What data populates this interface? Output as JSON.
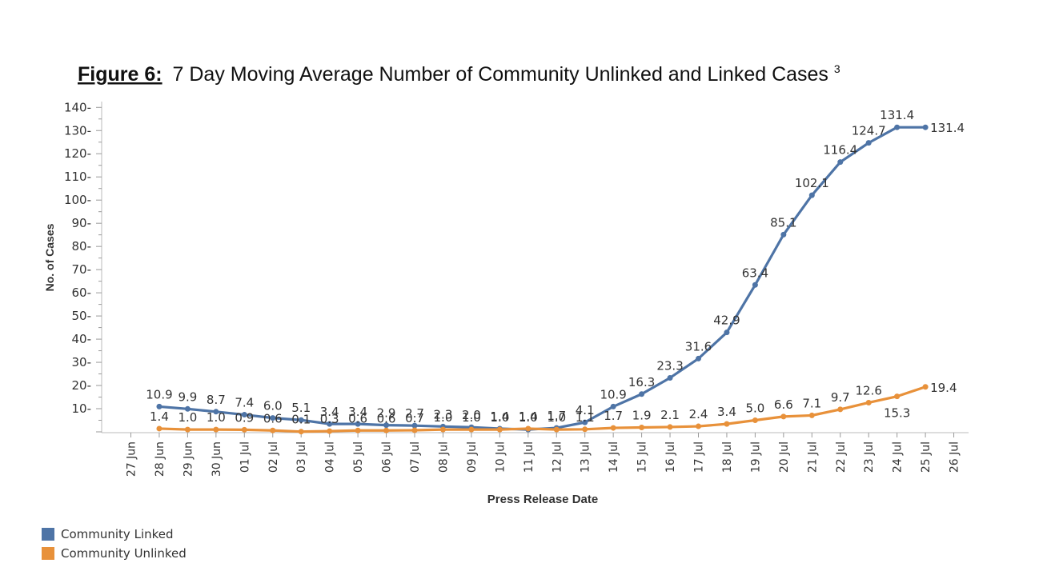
{
  "title_prefix": "Figure 6:",
  "title_main": "7 Day Moving Average Number of Community Unlinked and Linked Cases",
  "title_sup": "3",
  "chart_data": {
    "type": "line",
    "title": "Figure 6: 7 Day Moving Average Number of Community Unlinked and Linked Cases",
    "xlabel": "Press Release Date",
    "ylabel": "No. of Cases",
    "ylim": [
      0,
      140
    ],
    "yticks": [
      10,
      20,
      30,
      40,
      50,
      60,
      70,
      80,
      90,
      100,
      110,
      120,
      130,
      140
    ],
    "grid": false,
    "legend_position": "bottom-left",
    "x": [
      "27 Jun",
      "28 Jun",
      "29 Jun",
      "30 Jun",
      "01 Jul",
      "02 Jul",
      "03 Jul",
      "04 Jul",
      "05 Jul",
      "06 Jul",
      "07 Jul",
      "08 Jul",
      "09 Jul",
      "10 Jul",
      "11 Jul",
      "12 Jul",
      "13 Jul",
      "14 Jul",
      "15 Jul",
      "16 Jul",
      "17 Jul",
      "18 Jul",
      "19 Jul",
      "20 Jul",
      "21 Jul",
      "22 Jul",
      "23 Jul",
      "24 Jul",
      "25 Jul",
      "26 Jul"
    ],
    "series": [
      {
        "name": "Community Linked",
        "color": "#4e74a6",
        "values": [
          null,
          10.9,
          9.9,
          8.7,
          7.4,
          6.0,
          5.1,
          3.4,
          3.4,
          2.9,
          2.7,
          2.3,
          2.0,
          1.4,
          1.0,
          1.7,
          4.1,
          10.9,
          16.3,
          23.3,
          31.6,
          42.9,
          63.4,
          85.1,
          102.1,
          116.4,
          124.7,
          131.4,
          131.4,
          null
        ]
      },
      {
        "name": "Community Unlinked",
        "color": "#e8913a",
        "values": [
          null,
          1.4,
          1.0,
          1.0,
          0.9,
          0.6,
          0.1,
          0.3,
          0.6,
          0.6,
          0.7,
          1.0,
          1.0,
          1.0,
          1.4,
          1.0,
          1.1,
          1.7,
          1.9,
          2.1,
          2.4,
          3.4,
          5.0,
          6.6,
          7.1,
          9.7,
          12.6,
          15.3,
          19.4,
          null
        ]
      }
    ]
  }
}
